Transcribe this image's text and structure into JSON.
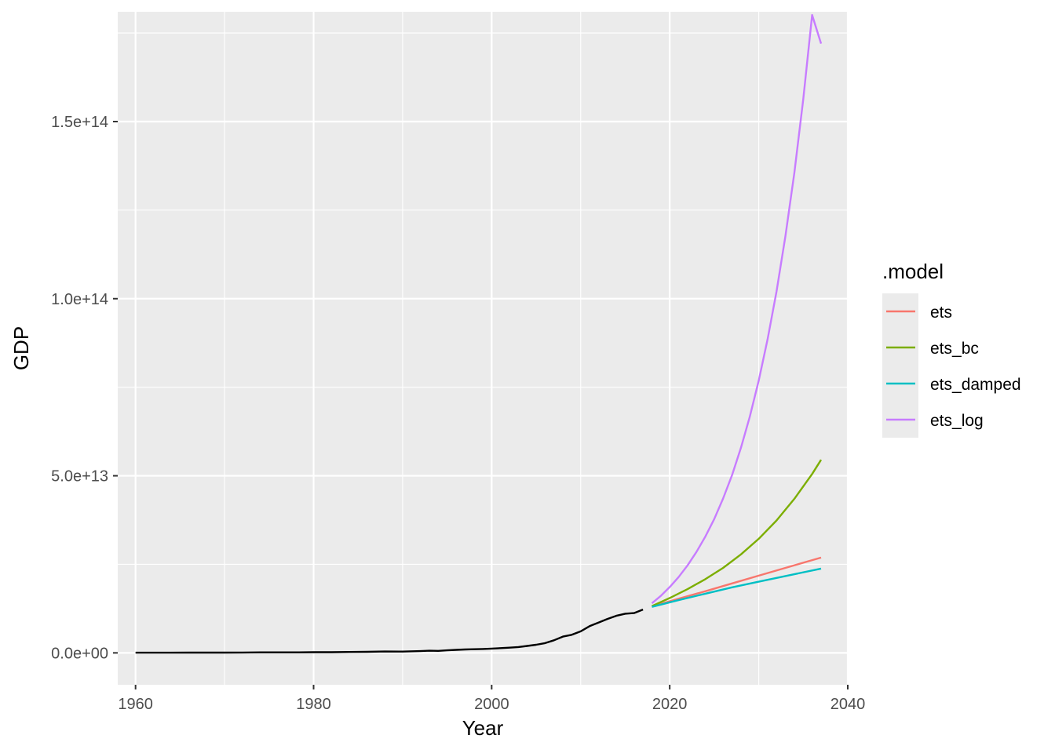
{
  "chart_data": {
    "type": "line",
    "xlabel": "Year",
    "ylabel": "GDP",
    "xlim": [
      1958,
      2040
    ],
    "ylim": [
      -9000000000000.0,
      181000000000000.0
    ],
    "x_ticks": [
      1960,
      1980,
      2000,
      2020,
      2040
    ],
    "x_tick_labels": [
      "1960",
      "1980",
      "2000",
      "2020",
      "2040"
    ],
    "y_ticks": [
      0,
      50000000000000.0,
      100000000000000.0,
      150000000000000.0
    ],
    "y_tick_labels": [
      "0.0e+00",
      "5.0e+13",
      "1.0e+14",
      "1.5e+14"
    ],
    "grid": true,
    "legend": {
      "title": ".model",
      "position": "right",
      "entries": [
        "ets",
        "ets_bc",
        "ets_damped",
        "ets_log"
      ]
    },
    "history": {
      "color": "#000000",
      "x": [
        1960,
        1962,
        1964,
        1966,
        1968,
        1970,
        1972,
        1974,
        1976,
        1978,
        1980,
        1982,
        1984,
        1986,
        1988,
        1990,
        1992,
        1993,
        1994,
        1995,
        1996,
        1997,
        1998,
        1999,
        2000,
        2001,
        2002,
        2003,
        2004,
        2005,
        2006,
        2007,
        2008,
        2009,
        2010,
        2011,
        2012,
        2013,
        2014,
        2015,
        2016,
        2017
      ],
      "y": [
        60000000000.0,
        50000000000.0,
        60000000000.0,
        70000000000.0,
        70000000000.0,
        90000000000.0,
        110000000000.0,
        140000000000.0,
        150000000000.0,
        150000000000.0,
        190000000000.0,
        200000000000.0,
        260000000000.0,
        300000000000.0,
        400000000000.0,
        360000000000.0,
        490000000000.0,
        610000000000.0,
        560000000000.0,
        730000000000.0,
        860000000000.0,
        960000000000.0,
        1030000000000.0,
        1090000000000.0,
        1210000000000.0,
        1340000000000.0,
        1470000000000.0,
        1660000000000.0,
        1960000000000.0,
        2290000000000.0,
        2750000000000.0,
        3550000000000.0,
        4590000000000.0,
        5100000000000.0,
        6090000000000.0,
        7550000000000.0,
        8530000000000.0,
        9570000000000.0,
        10475000000000.0,
        11061000000000.0,
        11233000000000.0,
        12237000000000.0
      ]
    },
    "series": [
      {
        "name": "ets",
        "color": "#F8766D",
        "x": [
          2018,
          2021,
          2024,
          2027,
          2030,
          2033,
          2037
        ],
        "y": [
          13100000000000.0,
          15300000000000.0,
          17400000000000.0,
          19600000000000.0,
          21800000000000.0,
          24000000000000.0,
          26900000000000.0
        ]
      },
      {
        "name": "ets_bc",
        "color": "#7CAE00",
        "x": [
          2018,
          2020,
          2022,
          2024,
          2026,
          2028,
          2030,
          2032,
          2034,
          2036,
          2037
        ],
        "y": [
          13200000000000.0,
          15500000000000.0,
          18000000000000.0,
          20800000000000.0,
          24000000000000.0,
          27800000000000.0,
          32200000000000.0,
          37400000000000.0,
          43500000000000.0,
          50500000000000.0,
          54500000000000.0
        ]
      },
      {
        "name": "ets_damped",
        "color": "#00BFC4",
        "x": [
          2018,
          2021,
          2024,
          2027,
          2030,
          2033,
          2037
        ],
        "y": [
          13000000000000.0,
          14900000000000.0,
          16700000000000.0,
          18500000000000.0,
          20100000000000.0,
          21700000000000.0,
          23800000000000.0
        ]
      },
      {
        "name": "ets_log",
        "color": "#C77CFF",
        "x": [
          2018,
          2019,
          2020,
          2021,
          2022,
          2023,
          2024,
          2025,
          2026,
          2027,
          2028,
          2029,
          2030,
          2031,
          2032,
          2033,
          2034,
          2035,
          2036,
          2037
        ],
        "y": [
          14000000000000.0,
          16100000000000.0,
          18600000000000.0,
          21400000000000.0,
          24700000000000.0,
          28500000000000.0,
          32800000000000.0,
          37800000000000.0,
          43600000000000.0,
          50200000000000.0,
          57900000000000.0,
          66700000000000.0,
          76900000000000.0,
          88600000000000.0,
          102100000000000.0,
          117700000000000.0,
          135600000000000.0,
          156300000000000.0,
          180100000000000.0,
          172000000000000.0
        ]
      }
    ]
  }
}
